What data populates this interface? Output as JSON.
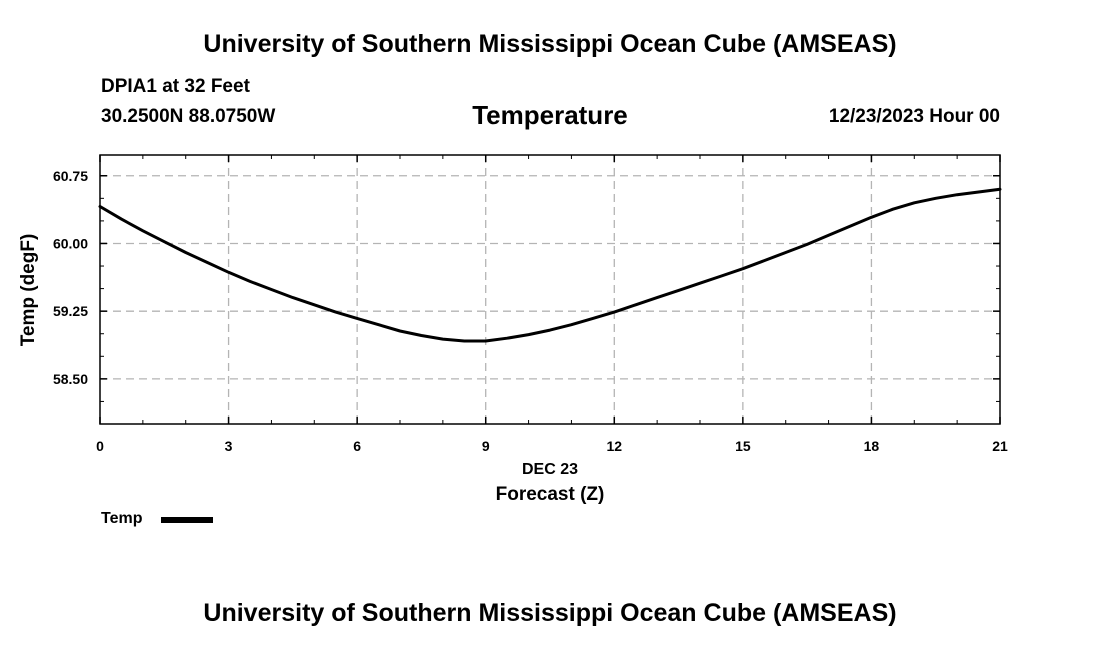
{
  "header": {
    "org_title": "University of Southern Mississippi Ocean Cube (AMSEAS)",
    "station": "DPIA1 at 32 Feet",
    "coordinates": "30.2500N  88.0750W",
    "variable": "Temperature",
    "datetime": "12/23/2023 Hour 00"
  },
  "footer": {
    "org_title": "University of Southern Mississippi Ocean Cube (AMSEAS)"
  },
  "legend": {
    "label": "Temp"
  },
  "chart_data": {
    "type": "line",
    "title": "Temperature",
    "xlabel": "Forecast (Z)",
    "x_sublabel": "DEC 23",
    "ylabel": "Temp (degF)",
    "xlim": [
      0,
      21
    ],
    "ylim": [
      58.0,
      60.98
    ],
    "x_ticks": [
      0,
      3,
      6,
      9,
      12,
      15,
      18,
      21
    ],
    "x_tick_labels": [
      "0",
      "3",
      "6",
      "9",
      "12",
      "15",
      "18",
      "21"
    ],
    "y_ticks": [
      58.5,
      59.25,
      60.0,
      60.75
    ],
    "y_tick_labels": [
      "58.50",
      "59.25",
      "60.00",
      "60.75"
    ],
    "grid": true,
    "legend_position": "bottom-left",
    "series": [
      {
        "name": "Temp",
        "color": "#000000",
        "x": [
          0,
          0.5,
          1,
          1.5,
          2,
          2.5,
          3,
          3.5,
          4,
          4.5,
          5,
          5.5,
          6,
          6.5,
          7,
          7.5,
          8,
          8.5,
          9,
          9.5,
          10,
          10.5,
          11,
          11.5,
          12,
          12.5,
          13,
          13.5,
          14,
          14.5,
          15,
          15.5,
          16,
          16.5,
          17,
          17.5,
          18,
          18.5,
          19,
          19.5,
          20,
          20.5,
          21
        ],
        "values": [
          60.41,
          60.27,
          60.14,
          60.02,
          59.9,
          59.79,
          59.68,
          59.58,
          59.49,
          59.4,
          59.32,
          59.24,
          59.17,
          59.1,
          59.03,
          58.98,
          58.94,
          58.92,
          58.92,
          58.95,
          58.99,
          59.04,
          59.1,
          59.17,
          59.24,
          59.32,
          59.4,
          59.48,
          59.56,
          59.64,
          59.72,
          59.81,
          59.9,
          59.99,
          60.09,
          60.19,
          60.29,
          60.38,
          60.45,
          60.5,
          60.54,
          60.57,
          60.6
        ]
      }
    ]
  }
}
